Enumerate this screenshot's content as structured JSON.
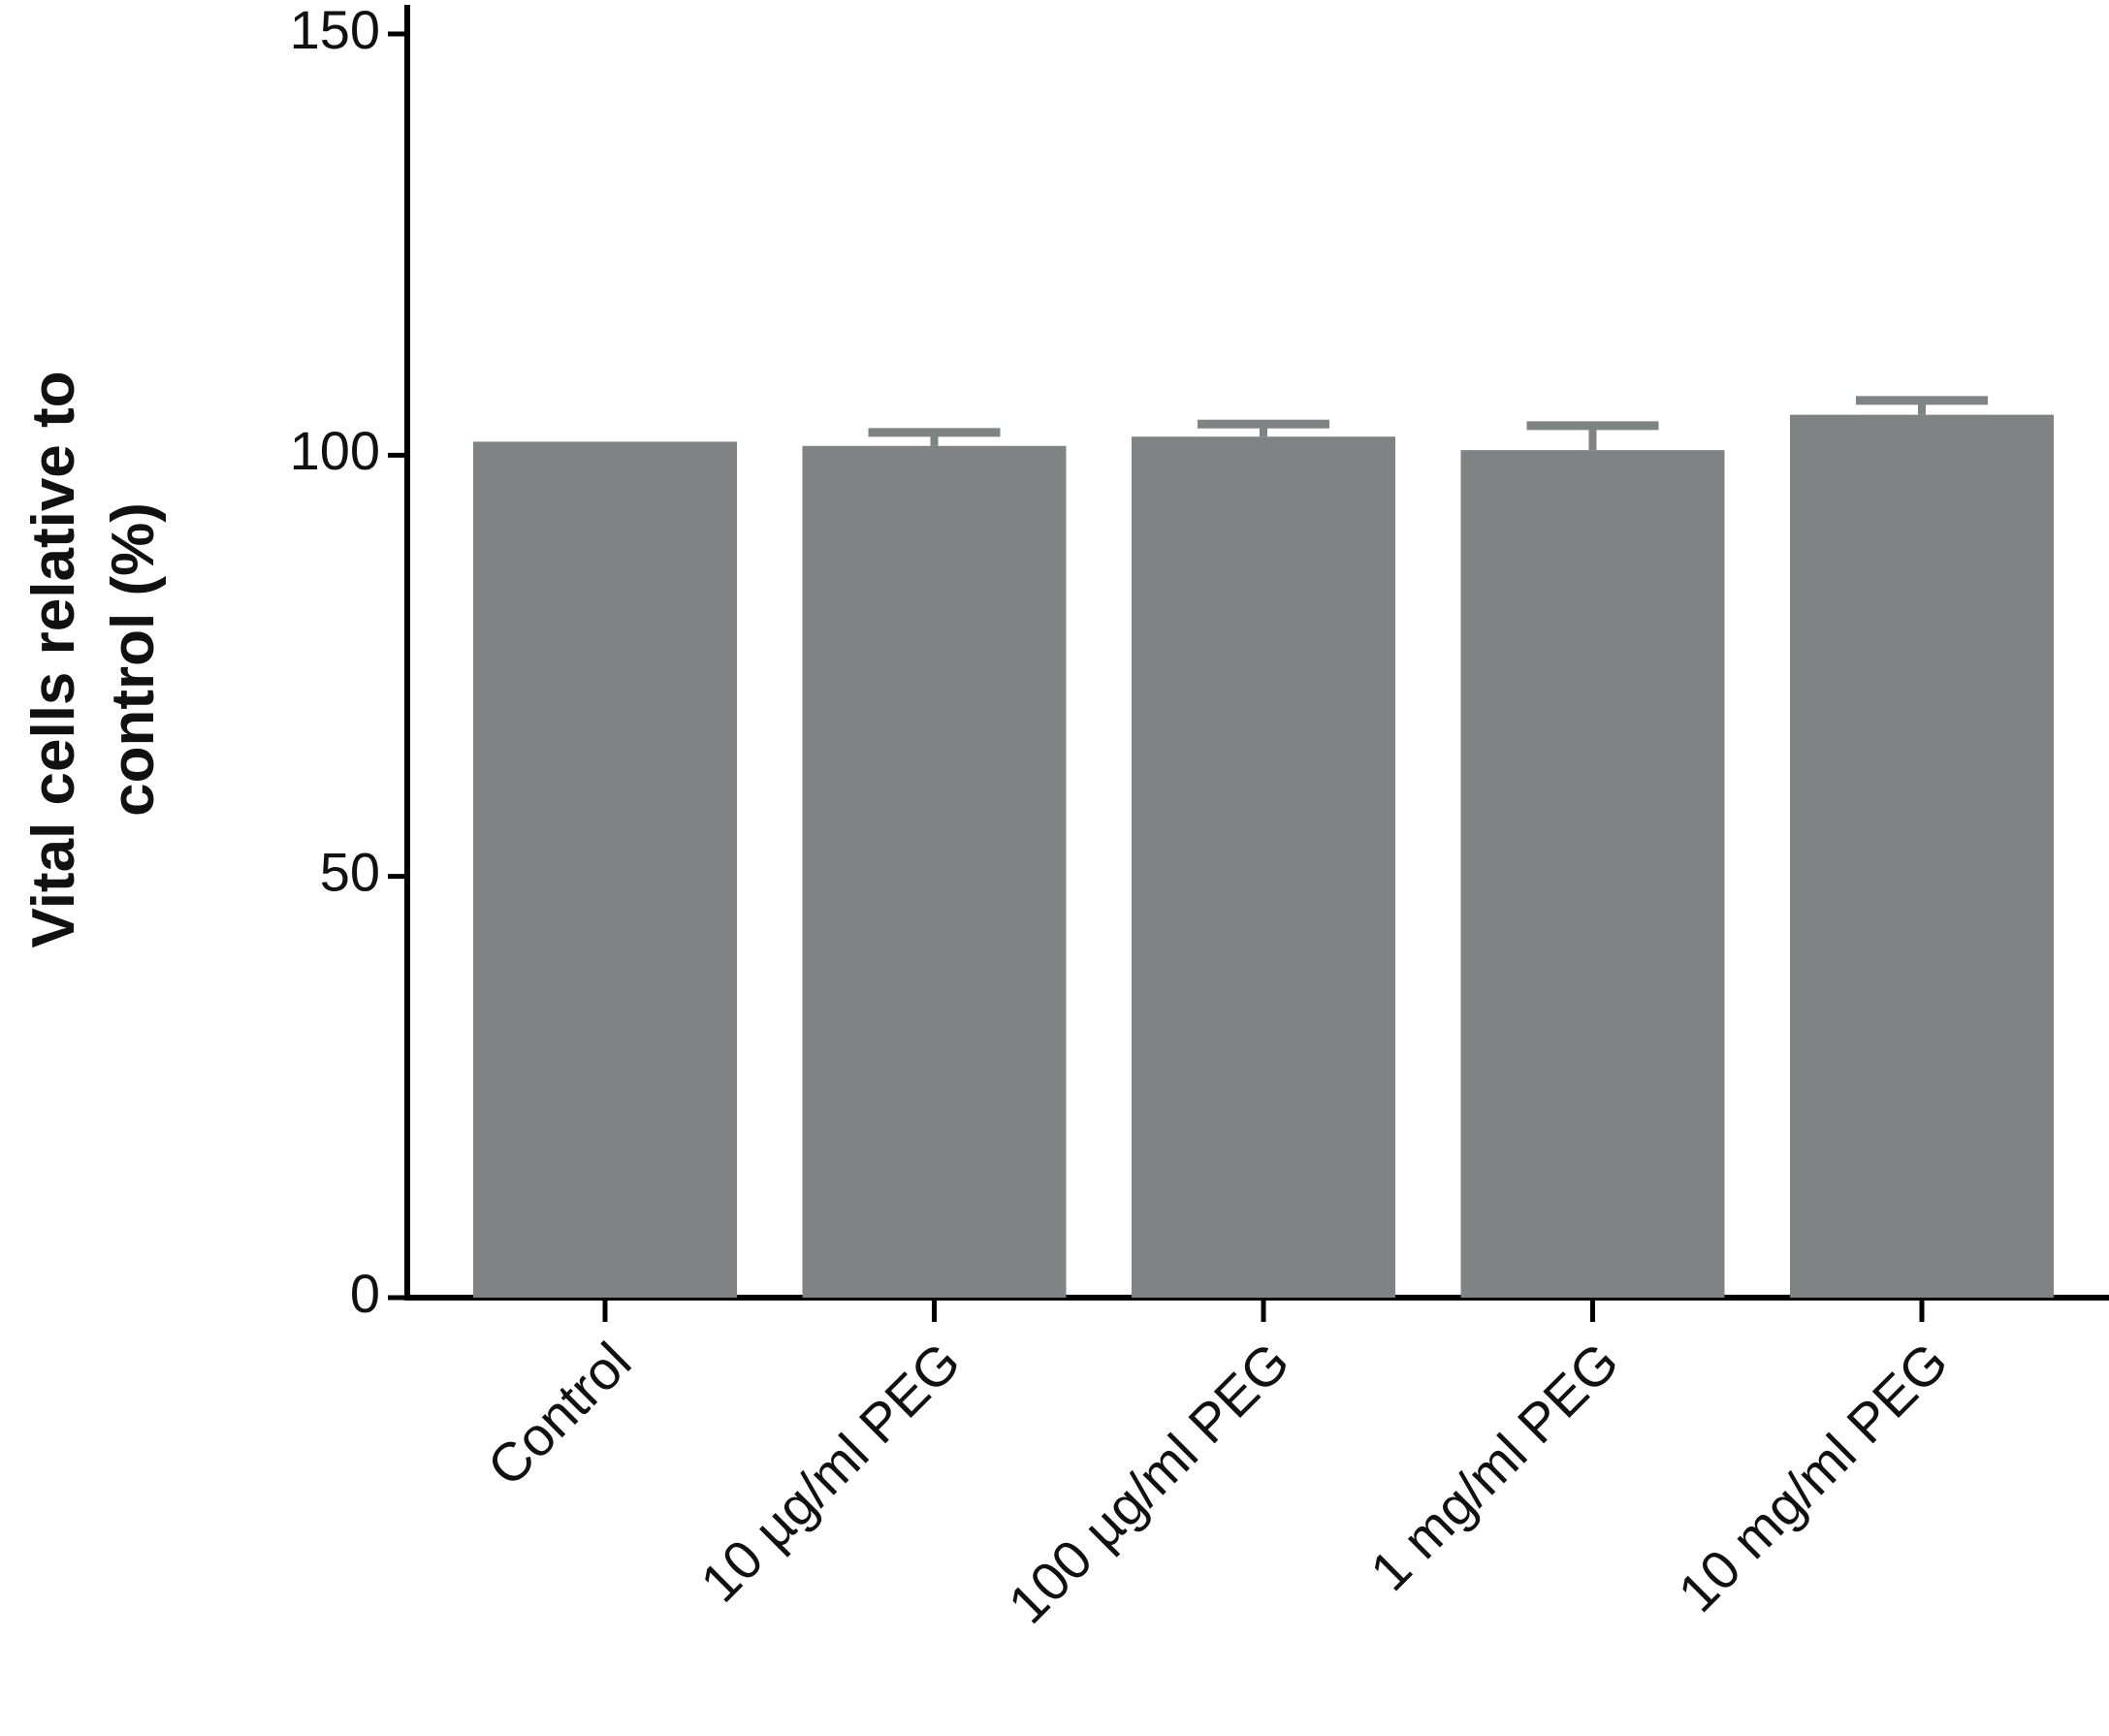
{
  "chart_data": {
    "type": "bar",
    "ylabel": "Vital cells relative to control (%)",
    "categories": [
      "Control",
      "10 µg/ml PEG",
      "100 µg/ml PEG",
      "1 mg/ml PEG",
      "10 mg/ml PEG"
    ],
    "values": [
      101.6,
      101.1,
      102.2,
      100.6,
      104.8
    ],
    "errors": [
      null,
      1.6,
      1.5,
      2.9,
      1.7
    ],
    "color": "#7f8384",
    "ylim": [
      0,
      150
    ],
    "yticks": [
      0,
      50,
      100,
      150
    ],
    "grid": false
  }
}
